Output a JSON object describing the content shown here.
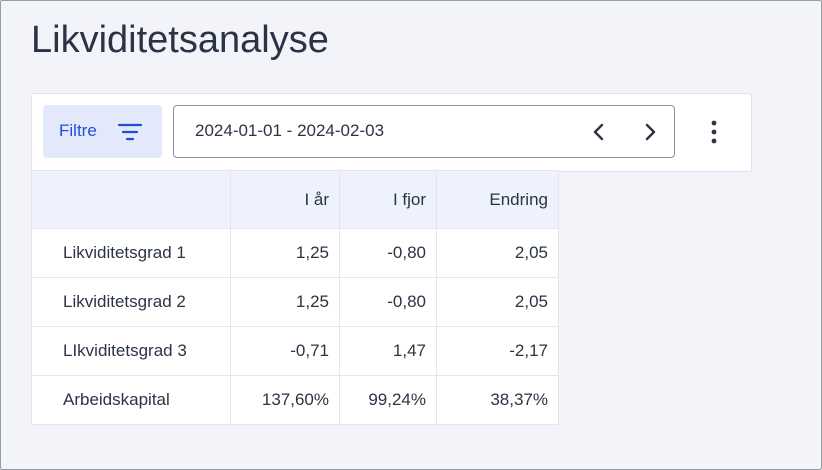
{
  "header": {
    "title": "Likviditetsanalyse"
  },
  "toolbar": {
    "filter_label": "Filtre",
    "date_range": "2024-01-01 - 2024-02-03"
  },
  "table": {
    "columns": [
      "I år",
      "I fjor",
      "Endring"
    ],
    "rows": [
      [
        "Likviditetsgrad 1",
        "1,25",
        "-0,80",
        "2,05"
      ],
      [
        "Likviditetsgrad 2",
        "1,25",
        "-0,80",
        "2,05"
      ],
      [
        "LIkviditetsgrad 3",
        "-0,71",
        "1,47",
        "-2,17"
      ],
      [
        "Arbeidskapital",
        "137,60%",
        "99,24%",
        "38,37%"
      ]
    ]
  }
}
